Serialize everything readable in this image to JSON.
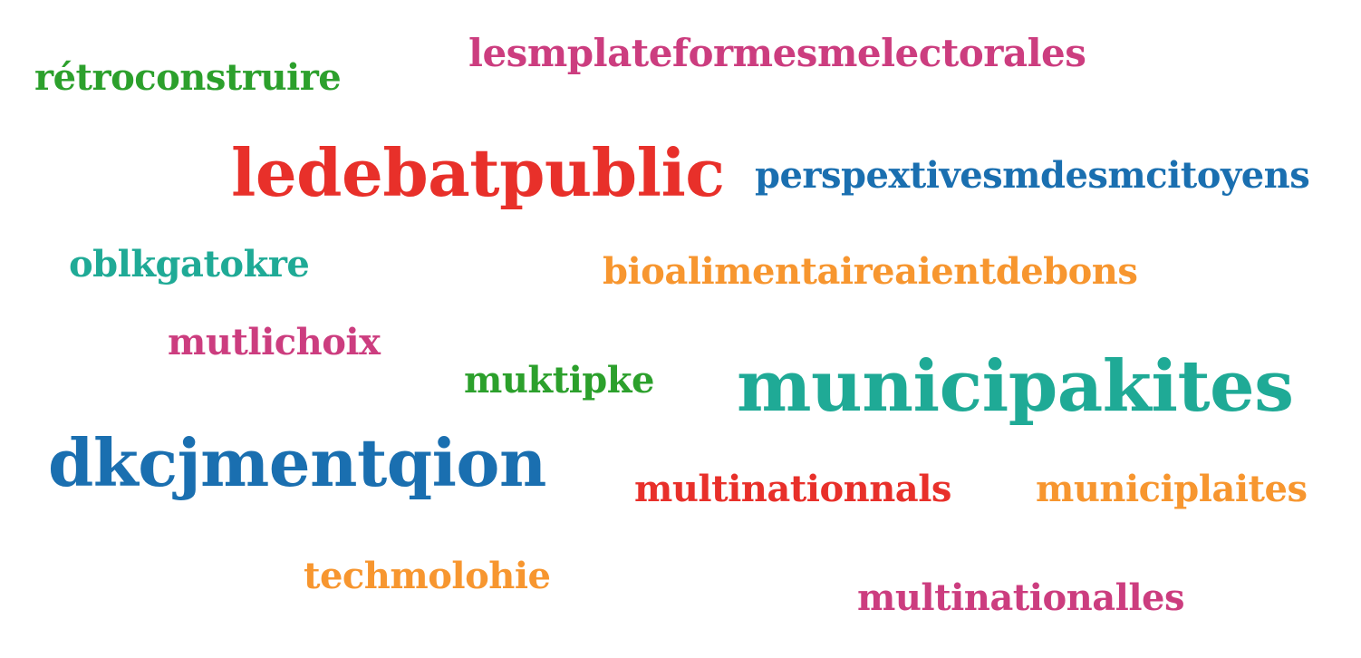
{
  "words": [
    {
      "text": "rétroconstruire",
      "color": "#2ca02c"
    },
    {
      "text": "lesmplateformesmelectorales",
      "color": "#cc3d7f"
    },
    {
      "text": "ledebatpublic",
      "color": "#e8302a"
    },
    {
      "text": "perspextivesmdesmcitoyens",
      "color": "#1a6fb0"
    },
    {
      "text": "oblkgatokre",
      "color": "#1faa96"
    },
    {
      "text": "bioalimentaireaientdebons",
      "color": "#f7962f"
    },
    {
      "text": "mutlichoix",
      "color": "#cc3d7f"
    },
    {
      "text": "muktipke",
      "color": "#2ca02c"
    },
    {
      "text": "municipakites",
      "color": "#1faa96"
    },
    {
      "text": "dkcjmentqion",
      "color": "#1a6fb0"
    },
    {
      "text": "multinationnals",
      "color": "#e8302a"
    },
    {
      "text": "municiplaites",
      "color": "#f7962f"
    },
    {
      "text": "techmolohie",
      "color": "#f7962f"
    },
    {
      "text": "multinationalles",
      "color": "#cc3d7f"
    }
  ]
}
